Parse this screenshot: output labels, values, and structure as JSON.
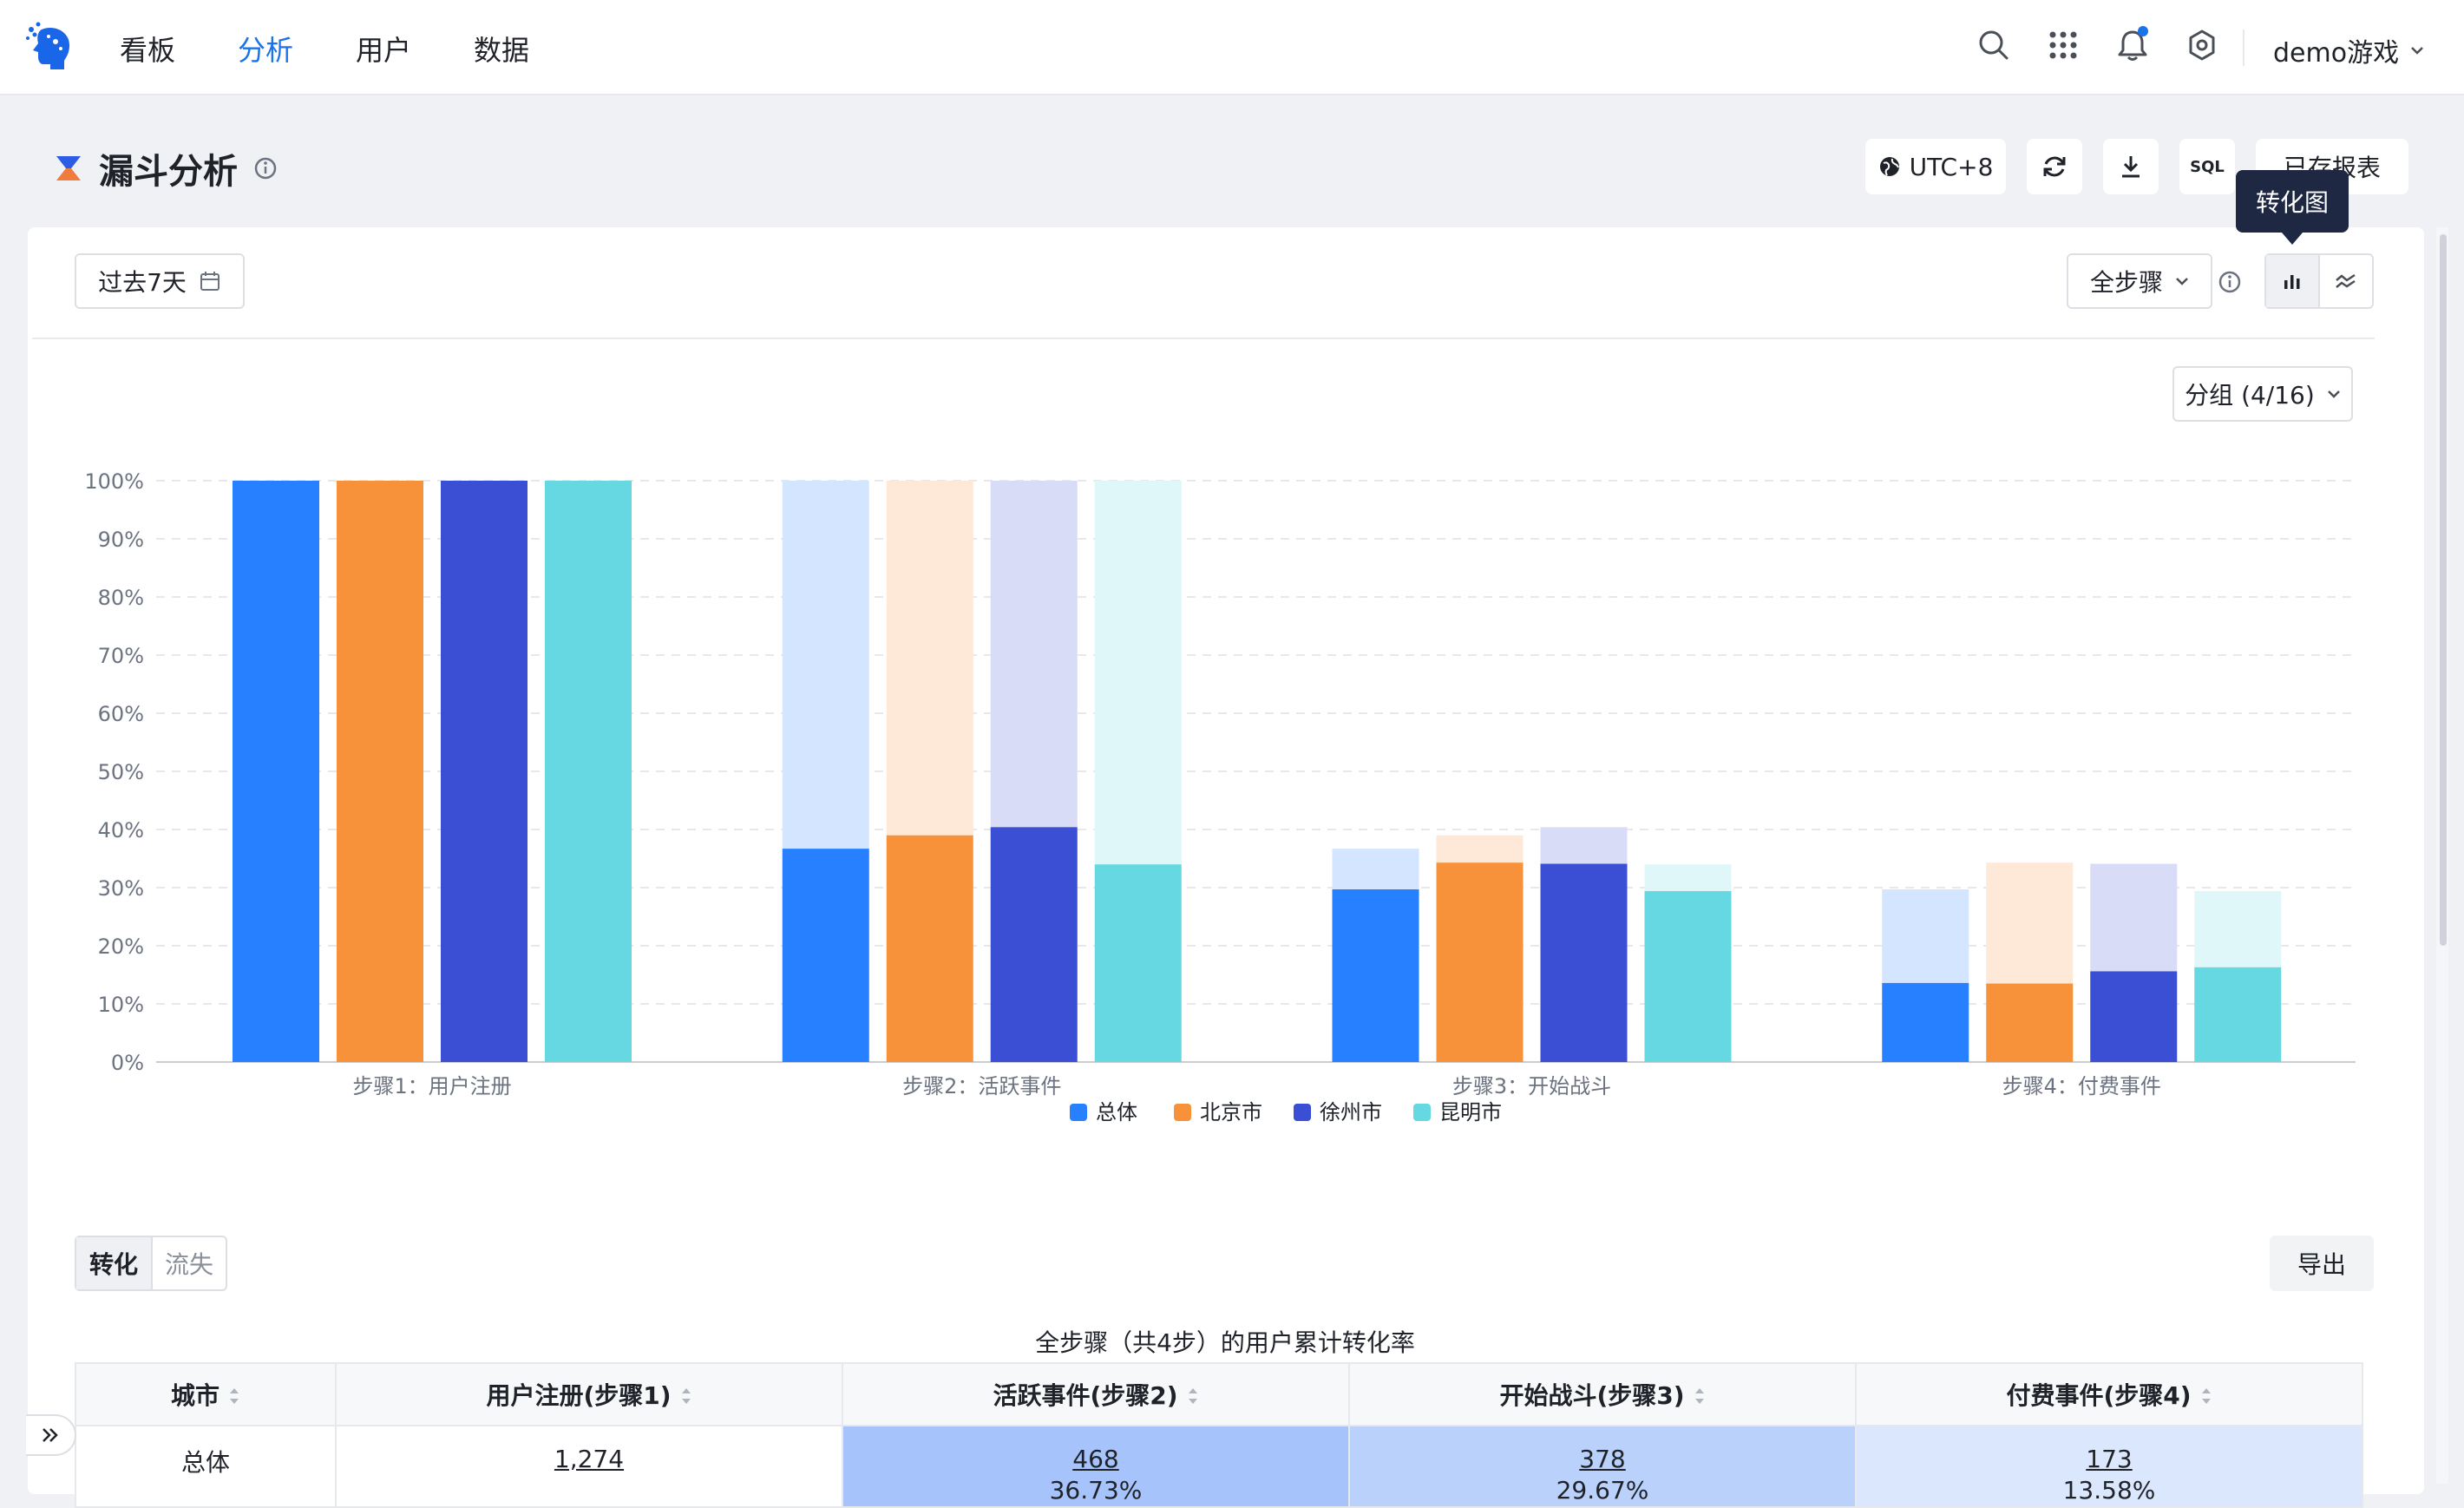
{
  "nav": {
    "items": [
      "看板",
      "分析",
      "用户",
      "数据"
    ],
    "active": "分析",
    "account": "demo游戏",
    "accent_color": "#1a73e8"
  },
  "header": {
    "title": "漏斗分析",
    "timezone": "UTC+8",
    "sql_label": "SQL",
    "saved_report_label": "已存报表",
    "tooltip": "转化图"
  },
  "toolbar": {
    "date_range": "过去7天",
    "steps_select": "全步骤",
    "group_select": "分组 (4/16)"
  },
  "chart_data": {
    "type": "bar",
    "categories": [
      "步骤1：用户注册",
      "步骤2：活跃事件",
      "步骤3：开始战斗",
      "步骤4：付费事件"
    ],
    "series": [
      {
        "name": "总体",
        "color": "#2680ff",
        "values": [
          100,
          36.7,
          29.7,
          13.6
        ],
        "totals": [
          100,
          100,
          36.7,
          29.7
        ]
      },
      {
        "name": "北京市",
        "color": "#f8923a",
        "values": [
          100,
          39.0,
          34.3,
          13.5
        ],
        "totals": [
          100,
          100,
          39.0,
          34.3
        ]
      },
      {
        "name": "徐州市",
        "color": "#3a4fd4",
        "values": [
          100,
          40.4,
          34.1,
          15.6
        ],
        "totals": [
          100,
          100,
          40.4,
          34.1
        ]
      },
      {
        "name": "昆明市",
        "color": "#66d8e1",
        "values": [
          100,
          34.0,
          29.4,
          16.3
        ],
        "totals": [
          100,
          100,
          34.0,
          29.4
        ]
      }
    ],
    "yticks": [
      "0%",
      "10%",
      "20%",
      "30%",
      "40%",
      "50%",
      "60%",
      "70%",
      "80%",
      "90%",
      "100%"
    ],
    "ylim": [
      0,
      100
    ],
    "grid": true,
    "legend": "bottom"
  },
  "segmented": [
    "转化",
    "流失"
  ],
  "export_label": "导出",
  "table": {
    "caption": "全步骤（共4步）的用户累计转化率",
    "headers": [
      "城市",
      "用户注册(步骤1)",
      "活跃事件(步骤2)",
      "开始战斗(步骤3)",
      "付费事件(步骤4)"
    ],
    "row": {
      "city": "总体",
      "cells": [
        {
          "num": "1,274",
          "pct": ""
        },
        {
          "num": "468",
          "pct": "36.73%"
        },
        {
          "num": "378",
          "pct": "29.67%"
        },
        {
          "num": "173",
          "pct": "13.58%"
        }
      ]
    }
  }
}
